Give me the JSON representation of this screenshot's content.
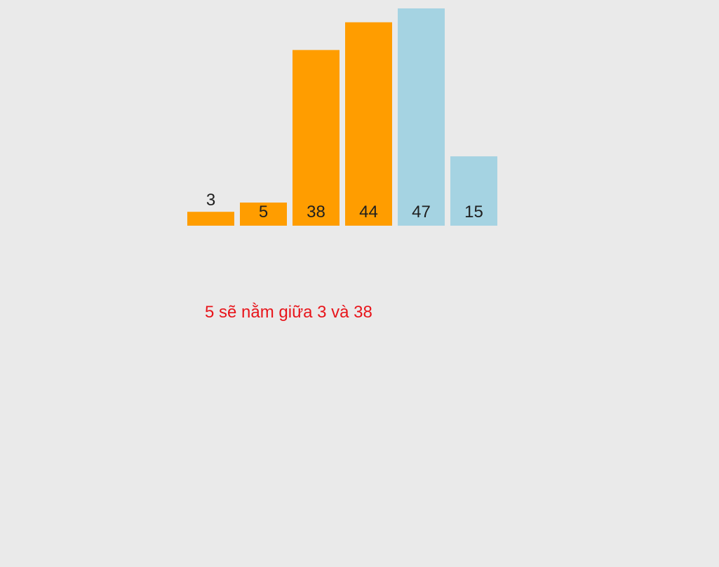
{
  "chart_data": {
    "type": "bar",
    "values": [
      3,
      5,
      38,
      44,
      47,
      15
    ],
    "labels": [
      "3",
      "5",
      "38",
      "44",
      "47",
      "15"
    ],
    "bar_colors": [
      "#ff9d00",
      "#ff9d00",
      "#ff9d00",
      "#ff9d00",
      "#a5d3e2",
      "#a5d3e2"
    ],
    "ylim": [
      0,
      47
    ]
  },
  "caption": {
    "text": "5 sẽ nằm giữa 3 và 38",
    "color": "#e8151b"
  },
  "colors": {
    "background": "#eaeaea",
    "sorted": "#ff9d00",
    "unsorted": "#a5d3e2"
  }
}
